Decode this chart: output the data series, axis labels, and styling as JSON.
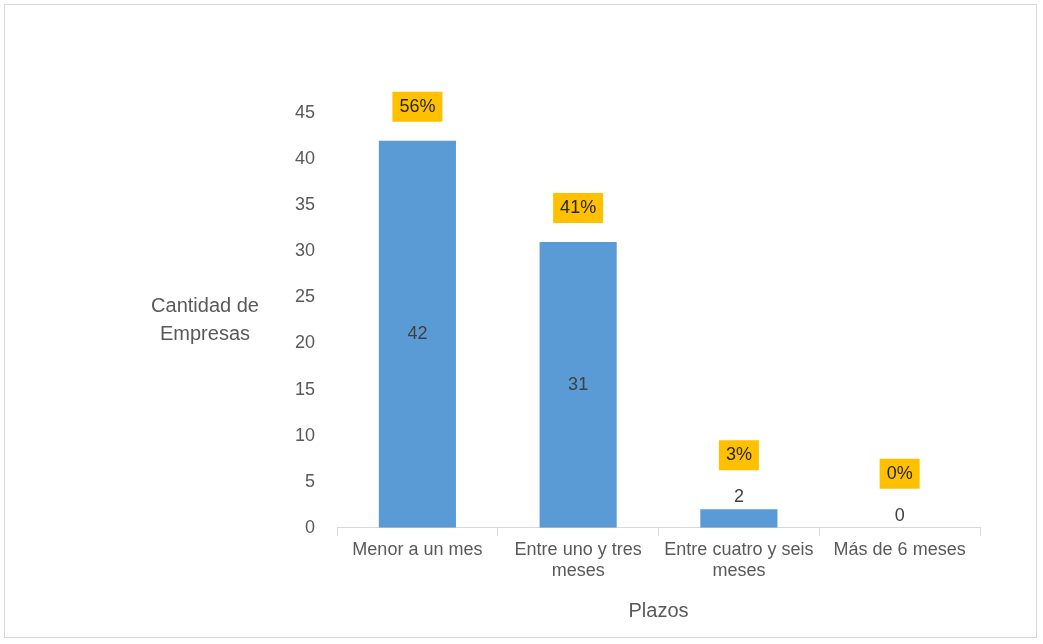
{
  "chart_data": {
    "type": "bar",
    "xlabel": "Plazos",
    "ylabel": "Cantidad de Empresas",
    "categories": [
      "Menor a un mes",
      "Entre uno y tres meses",
      "Entre cuatro y seis meses",
      "Más de 6 meses"
    ],
    "values": [
      42,
      31,
      2,
      0
    ],
    "color": "#5b9bd5",
    "ylim": [
      0,
      45
    ],
    "yticks": [
      0,
      5,
      10,
      15,
      20,
      25,
      30,
      35,
      40,
      45
    ],
    "grid": false,
    "data_labels": true,
    "annotations": [
      {
        "text": "56%",
        "x": "Menor a un mes",
        "y": 42
      },
      {
        "text": "41%",
        "x": "Entre uno y tres meses",
        "y": 31
      },
      {
        "text": "3%",
        "x": "Entre cuatro y seis meses",
        "y": 2
      },
      {
        "text": "0%",
        "x": "Más de 6 meses",
        "y": 0
      }
    ]
  }
}
